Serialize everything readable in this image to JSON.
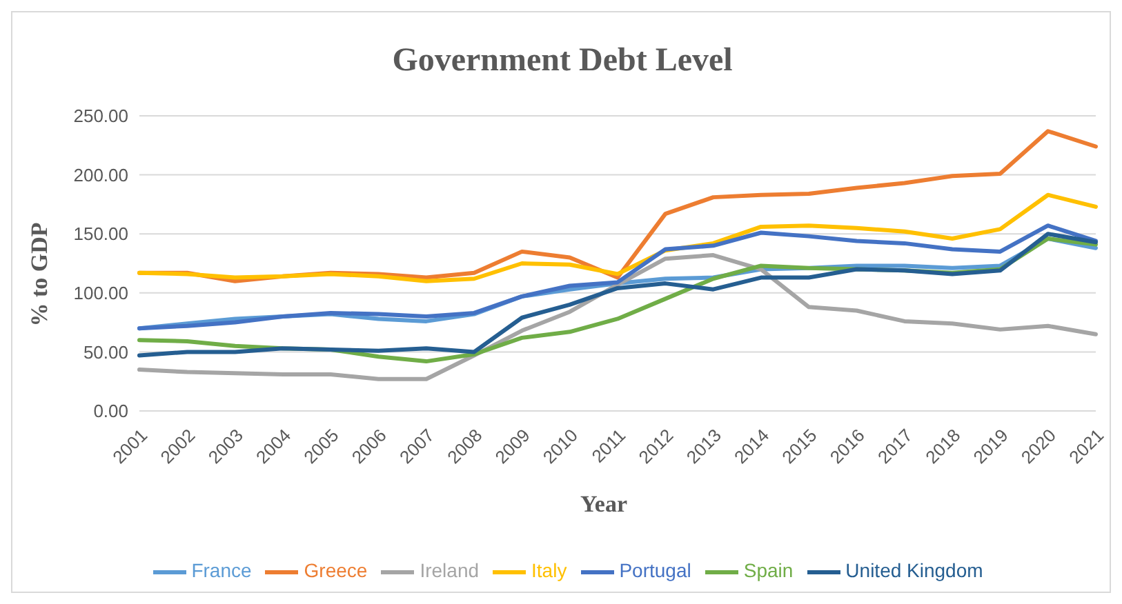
{
  "chart_data": {
    "type": "line",
    "title": "Government Debt Level",
    "xlabel": "Year",
    "ylabel": "% to GDP",
    "categories": [
      "2001",
      "2002",
      "2003",
      "2004",
      "2005",
      "2006",
      "2007",
      "2008",
      "2009",
      "2010",
      "2011",
      "2012",
      "2013",
      "2014",
      "2015",
      "2016",
      "2017",
      "2018",
      "2019",
      "2020",
      "2021"
    ],
    "series": [
      {
        "name": "France",
        "color": "#5b9bd5",
        "values": [
          70,
          74,
          78,
          80,
          82,
          78,
          76,
          82,
          97,
          103,
          108,
          112,
          113,
          120,
          121,
          123,
          123,
          121,
          123,
          146,
          138
        ]
      },
      {
        "name": "Greece",
        "color": "#ed7d31",
        "values": [
          117,
          117,
          110,
          114,
          117,
          116,
          113,
          117,
          135,
          130,
          113,
          167,
          181,
          183,
          184,
          189,
          193,
          199,
          201,
          237,
          224
        ]
      },
      {
        "name": "Ireland",
        "color": "#a5a5a5",
        "values": [
          35,
          33,
          32,
          31,
          31,
          27,
          27,
          47,
          68,
          84,
          107,
          129,
          132,
          120,
          88,
          85,
          76,
          74,
          69,
          72,
          65
        ]
      },
      {
        "name": "Italy",
        "color": "#ffc000",
        "values": [
          117,
          116,
          113,
          114,
          116,
          114,
          110,
          112,
          125,
          124,
          116,
          136,
          142,
          156,
          157,
          155,
          152,
          146,
          154,
          183,
          173
        ]
      },
      {
        "name": "Portugal",
        "color": "#4472c4",
        "values": [
          70,
          72,
          75,
          80,
          83,
          82,
          80,
          83,
          97,
          106,
          109,
          137,
          140,
          151,
          148,
          144,
          142,
          137,
          135,
          157,
          144
        ]
      },
      {
        "name": "Spain",
        "color": "#70ad47",
        "values": [
          60,
          59,
          55,
          53,
          52,
          46,
          42,
          48,
          62,
          67,
          78,
          95,
          112,
          123,
          121,
          120,
          119,
          117,
          120,
          146,
          141
        ]
      },
      {
        "name": "United Kingdom",
        "color": "#255e91",
        "values": [
          47,
          50,
          50,
          53,
          52,
          51,
          53,
          50,
          79,
          90,
          104,
          108,
          103,
          113,
          113,
          120,
          119,
          116,
          119,
          150,
          143
        ]
      }
    ],
    "ylim": [
      0,
      250
    ],
    "yticks": [
      {
        "value": 0,
        "label": "0.00"
      },
      {
        "value": 50,
        "label": "50.00"
      },
      {
        "value": 100,
        "label": "100.00"
      },
      {
        "value": 150,
        "label": "150.00"
      },
      {
        "value": 200,
        "label": "200.00"
      },
      {
        "value": 250,
        "label": "250.00"
      }
    ],
    "grid": "y",
    "legend": "bottom",
    "marker": "none",
    "line_style": "solid"
  }
}
